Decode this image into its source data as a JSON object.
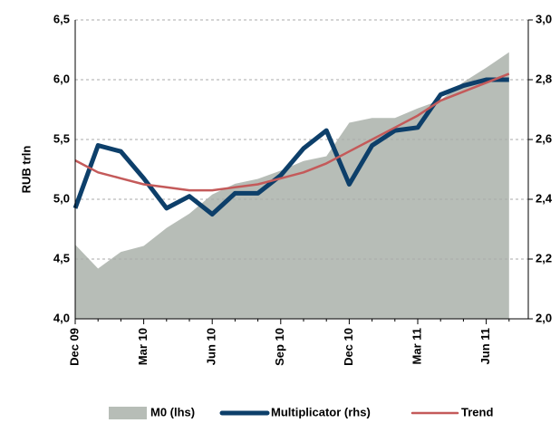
{
  "chart_data": {
    "type": "line",
    "y_label": "RUB trln",
    "categories": [
      "Dec 09",
      null,
      null,
      "Mar 10",
      null,
      null,
      "Jun 10",
      null,
      null,
      "Sep 10",
      null,
      null,
      "Dec 10",
      null,
      null,
      "Mar 11",
      null,
      null,
      "Jun 11",
      null
    ],
    "ylim": [
      4.0,
      6.5
    ],
    "yticks": [
      {
        "value": 4.0,
        "label": "4,0"
      },
      {
        "value": 4.5,
        "label": "4,5"
      },
      {
        "value": 5.0,
        "label": "5,0"
      },
      {
        "value": 5.5,
        "label": "5,5"
      },
      {
        "value": 6.0,
        "label": "6,0"
      },
      {
        "value": 6.5,
        "label": "6,5"
      }
    ],
    "y2lim": [
      2.0,
      3.0
    ],
    "y2ticks": [
      {
        "value": 2.0,
        "label": "2,0"
      },
      {
        "value": 2.2,
        "label": "2,2"
      },
      {
        "value": 2.4,
        "label": "2,4"
      },
      {
        "value": 2.6,
        "label": "2,6"
      },
      {
        "value": 2.8,
        "label": "2,8"
      },
      {
        "value": 3.0,
        "label": "3,0"
      }
    ],
    "grid": true,
    "legend": "bottom",
    "series": [
      {
        "name": "M0 (lhs)",
        "type": "area",
        "color": "#b7bdb7",
        "axis": "y",
        "values": [
          4.62,
          4.42,
          4.56,
          4.61,
          4.76,
          4.88,
          5.04,
          5.13,
          5.17,
          5.24,
          5.32,
          5.36,
          5.64,
          5.68,
          5.68,
          5.76,
          5.83,
          5.98,
          6.1,
          6.23
        ]
      },
      {
        "name": "Multiplicator (rhs)",
        "type": "line",
        "color": "#0d3f6a",
        "width": 5,
        "axis": "y2",
        "values": [
          2.37,
          2.58,
          2.56,
          2.47,
          2.37,
          2.41,
          2.35,
          2.42,
          2.42,
          2.48,
          2.57,
          2.63,
          2.45,
          2.58,
          2.63,
          2.64,
          2.75,
          2.78,
          2.8,
          2.8
        ]
      },
      {
        "name": "Trend",
        "type": "line",
        "color": "#c45a5a",
        "width": 2.5,
        "axis": "y2",
        "values": [
          2.53,
          2.49,
          2.47,
          2.45,
          2.44,
          2.43,
          2.43,
          2.44,
          2.45,
          2.47,
          2.49,
          2.52,
          2.56,
          2.6,
          2.64,
          2.68,
          2.73,
          2.76,
          2.79,
          2.82
        ]
      }
    ]
  }
}
